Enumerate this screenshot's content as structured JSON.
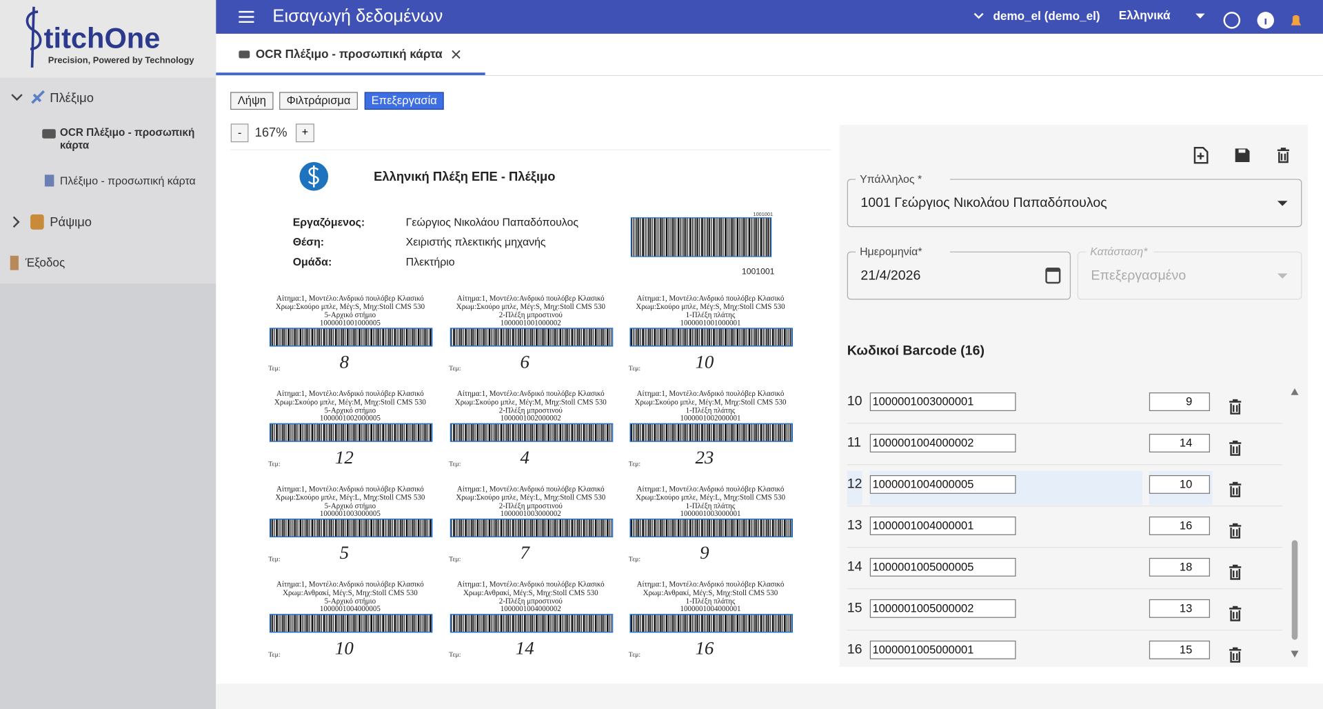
{
  "header": {
    "title": "Εισαγωγή δεδομένων",
    "user": "demo_el (demo_el)",
    "language": "Ελληνικά"
  },
  "sidebar": {
    "logo": "titchOne",
    "tagline": "Precision, Powered by Technology",
    "items": [
      {
        "label": "Πλέξιμο"
      },
      {
        "label": "OCR Πλέξιμο - προσωπική κάρτα"
      },
      {
        "label": "Πλέξιμο - προσωπική κάρτα"
      },
      {
        "label": "Ράψιμο"
      },
      {
        "label": "Έξοδος"
      }
    ]
  },
  "tabs": [
    {
      "label": "OCR Πλέξιμο - προσωπική κάρτα"
    }
  ],
  "toolbar": {
    "modes": [
      {
        "label": "Λήψη"
      },
      {
        "label": "Φιλτράρισμα"
      },
      {
        "label": "Επεξεργασία",
        "selected": true
      }
    ]
  },
  "zoom": {
    "out": "-",
    "level": "167%",
    "in": "+"
  },
  "document": {
    "title": "Ελληνική Πλέξη ΕΠΕ - Πλέξιμο",
    "fields": [
      {
        "label": "Εργαζόμενος:",
        "value": "Γεώργιος Νικολάου Παπαδόπουλος"
      },
      {
        "label": "Θέση:",
        "value": "Χειριστής πλεκτικής μηχανής"
      },
      {
        "label": "Ομάδα:",
        "value": "Πλεκτήριο"
      }
    ],
    "barcode": "1001001",
    "qty_label": "Τεμ:",
    "labels": [
      {
        "lines": [
          "Αίτημα:1, Μοντέλο:Ανδρικό πουλόβερ Κλασικό",
          "Χρωμ:Σκούρο μπλε, Μέγ:S, Μηχ:Stoll CMS 530",
          "5-Αρχικό στήμιο"
        ],
        "code": "1000001001000005",
        "qty": 8
      },
      {
        "lines": [
          "Αίτημα:1, Μοντέλο:Ανδρικό πουλόβερ Κλασικό",
          "Χρωμ:Σκούρο μπλε, Μέγ:S, Μηχ:Stoll CMS 530",
          "2-Πλέξη μπροστινού"
        ],
        "code": "1000001001000002",
        "qty": 6
      },
      {
        "lines": [
          "Αίτημα:1, Μοντέλο:Ανδρικό πουλόβερ Κλασικό",
          "Χρωμ:Σκούρο μπλε, Μέγ:S, Μηχ:Stoll CMS 530",
          "1-Πλέξη πλάτης"
        ],
        "code": "1000001001000001",
        "qty": 10
      },
      {
        "lines": [
          "Αίτημα:1, Μοντέλο:Ανδρικό πουλόβερ Κλασικό",
          "Χρωμ:Σκούρο μπλε, Μέγ:M, Μηχ:Stoll CMS 530",
          "5-Αρχικό στήμιο"
        ],
        "code": "1000001002000005",
        "qty": 12
      },
      {
        "lines": [
          "Αίτημα:1, Μοντέλο:Ανδρικό πουλόβερ Κλασικό",
          "Χρωμ:Σκούρο μπλε, Μέγ:M, Μηχ:Stoll CMS 530",
          "2-Πλέξη μπροστινού"
        ],
        "code": "1000001002000002",
        "qty": 4
      },
      {
        "lines": [
          "Αίτημα:1, Μοντέλο:Ανδρικό πουλόβερ Κλασικό",
          "Χρωμ:Σκούρο μπλε, Μέγ:M, Μηχ:Stoll CMS 530",
          "1-Πλέξη πλάτης"
        ],
        "code": "1000001002000001",
        "qty": 23
      },
      {
        "lines": [
          "Αίτημα:1, Μοντέλο:Ανδρικό πουλόβερ Κλασικό",
          "Χρωμ:Σκούρο μπλε, Μέγ:L, Μηχ:Stoll CMS 530",
          "5-Αρχικό στήμιο"
        ],
        "code": "1000001003000005",
        "qty": 5
      },
      {
        "lines": [
          "Αίτημα:1, Μοντέλο:Ανδρικό πουλόβερ Κλασικό",
          "Χρωμ:Σκούρο μπλε, Μέγ:L, Μηχ:Stoll CMS 530",
          "2-Πλέξη μπροστινού"
        ],
        "code": "1000001003000002",
        "qty": 7
      },
      {
        "lines": [
          "Αίτημα:1, Μοντέλο:Ανδρικό πουλόβερ Κλασικό",
          "Χρωμ:Σκούρο μπλε, Μέγ:L, Μηχ:Stoll CMS 530",
          "1-Πλέξη πλάτης"
        ],
        "code": "1000001003000001",
        "qty": 9
      },
      {
        "lines": [
          "Αίτημα:1, Μοντέλο:Ανδρικό πουλόβερ Κλασικό",
          "Χρωμ:Ανθρακί, Μέγ:S, Μηχ:Stoll CMS 530",
          "5-Αρχικό στήμιο"
        ],
        "code": "1000001004000005",
        "qty": 10
      },
      {
        "lines": [
          "Αίτημα:1, Μοντέλο:Ανδρικό πουλόβερ Κλασικό",
          "Χρωμ:Ανθρακί, Μέγ:S, Μηχ:Stoll CMS 530",
          "2-Πλέξη μπροστινού"
        ],
        "code": "1000001004000002",
        "qty": 14
      },
      {
        "lines": [
          "Αίτημα:1, Μοντέλο:Ανδρικό πουλόβερ Κλασικό",
          "Χρωμ:Ανθρακί, Μέγ:S, Μηχ:Stoll CMS 530",
          "1-Πλέξη πλάτης"
        ],
        "code": "1000001004000001",
        "qty": 16
      }
    ]
  },
  "form": {
    "employee": {
      "label": "Υπάλληλος *",
      "value": "1001 Γεώργιος Νικολάου Παπαδόπουλος"
    },
    "date": {
      "label": "Ημερομηνία*",
      "value": "21/4/2026"
    },
    "status": {
      "label": "Κατάσταση*",
      "value": "Επεξεργασμένο"
    }
  },
  "barcodes": {
    "title": "Κωδικοί Barcode (16)",
    "rows": [
      {
        "index": 10,
        "code": "1000001003000001",
        "qty": 9
      },
      {
        "index": 11,
        "code": "1000001004000002",
        "qty": 14
      },
      {
        "index": 12,
        "code": "1000001004000005",
        "qty": 10,
        "selected": true
      },
      {
        "index": 13,
        "code": "1000001004000001",
        "qty": 16
      },
      {
        "index": 14,
        "code": "1000001005000005",
        "qty": 18
      },
      {
        "index": 15,
        "code": "1000001005000002",
        "qty": 13
      },
      {
        "index": 16,
        "code": "1000001005000001",
        "qty": 15
      }
    ]
  }
}
